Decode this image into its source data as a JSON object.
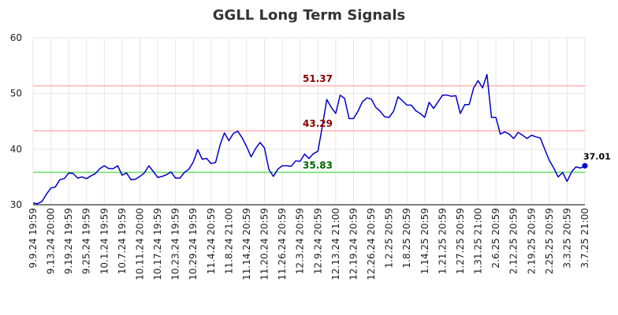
{
  "chart_data": {
    "type": "line",
    "title": "GGLL Long Term Signals",
    "xlabel": "",
    "ylabel": "",
    "ylim": [
      30,
      60
    ],
    "yticks": [
      30,
      40,
      50,
      60
    ],
    "grid": true,
    "x_tick_labels": [
      "9.9.24 19:59",
      "9.13.24 20:00",
      "9.19.24 19:59",
      "9.25.24 19:59",
      "10.1.24 19:59",
      "10.7.24 19:59",
      "10.11.24 20:00",
      "10.17.24 19:59",
      "10.23.24 19:59",
      "10.29.24 19:59",
      "11.4.24 20:59",
      "11.8.24 21:00",
      "11.14.24 20:59",
      "11.20.24 20:59",
      "11.26.24 20:59",
      "12.3.24 20:59",
      "12.9.24 20:59",
      "12.13.24 21:00",
      "12.19.24 20:59",
      "12.26.24 20:59",
      "1.2.25 20:59",
      "1.8.25 20:59",
      "1.14.25 20:59",
      "1.21.25 20:59",
      "1.27.25 20:59",
      "1.31.25 21:00",
      "2.6.25 20:59",
      "2.12.25 20:59",
      "2.19.25 20:59",
      "2.25.25 20:59",
      "3.3.25 20:59",
      "3.7.25 21:00"
    ],
    "series": [
      {
        "color": "#0000cc",
        "values": [
          30.3,
          30.2,
          30.6,
          31.9,
          33.0,
          33.2,
          34.5,
          34.7,
          35.7,
          35.6,
          34.8,
          35.0,
          34.7,
          35.2,
          35.6,
          36.5,
          37.0,
          36.5,
          36.5,
          37.0,
          35.3,
          35.7,
          34.5,
          34.6,
          35.1,
          35.7,
          37.0,
          36.0,
          34.9,
          35.1,
          35.4,
          35.9,
          34.8,
          34.8,
          35.8,
          36.4,
          37.7,
          39.9,
          38.2,
          38.3,
          37.4,
          37.6,
          40.7,
          42.9,
          41.5,
          42.8,
          43.2,
          42.0,
          40.4,
          38.6,
          40.1,
          41.2,
          40.2,
          36.3,
          35.1,
          36.4,
          37.0,
          37.0,
          36.9,
          37.9,
          37.8,
          39.1,
          38.3,
          39.2,
          39.6,
          44.1,
          48.9,
          47.5,
          46.4,
          49.7,
          49.1,
          45.5,
          45.5,
          46.8,
          48.5,
          49.2,
          49.0,
          47.5,
          46.8,
          45.8,
          45.7,
          46.8,
          49.4,
          48.7,
          47.9,
          47.9,
          46.9,
          46.4,
          45.7,
          48.4,
          47.3,
          48.5,
          49.7,
          49.7,
          49.5,
          49.6,
          46.4,
          48.0,
          48.0,
          51.0,
          52.3,
          51.0,
          53.4,
          45.7,
          45.7,
          42.7,
          43.1,
          42.7,
          41.9,
          43.0,
          42.5,
          41.9,
          42.5,
          42.2,
          42.0,
          39.9,
          38.0,
          36.6,
          35.0,
          35.8,
          34.2,
          35.9,
          36.8,
          36.6,
          37.01
        ]
      }
    ],
    "reference_lines": [
      {
        "value": 51.37,
        "label": "51.37",
        "line_color": "#ffb3b3",
        "label_color": "#8b0000"
      },
      {
        "value": 43.29,
        "label": "43.29",
        "line_color": "#ffb3b3",
        "label_color": "#8b0000"
      },
      {
        "value": 35.83,
        "label": "35.83",
        "line_color": "#66dd66",
        "label_color": "#006400"
      }
    ],
    "last_value_label": "37.01"
  }
}
